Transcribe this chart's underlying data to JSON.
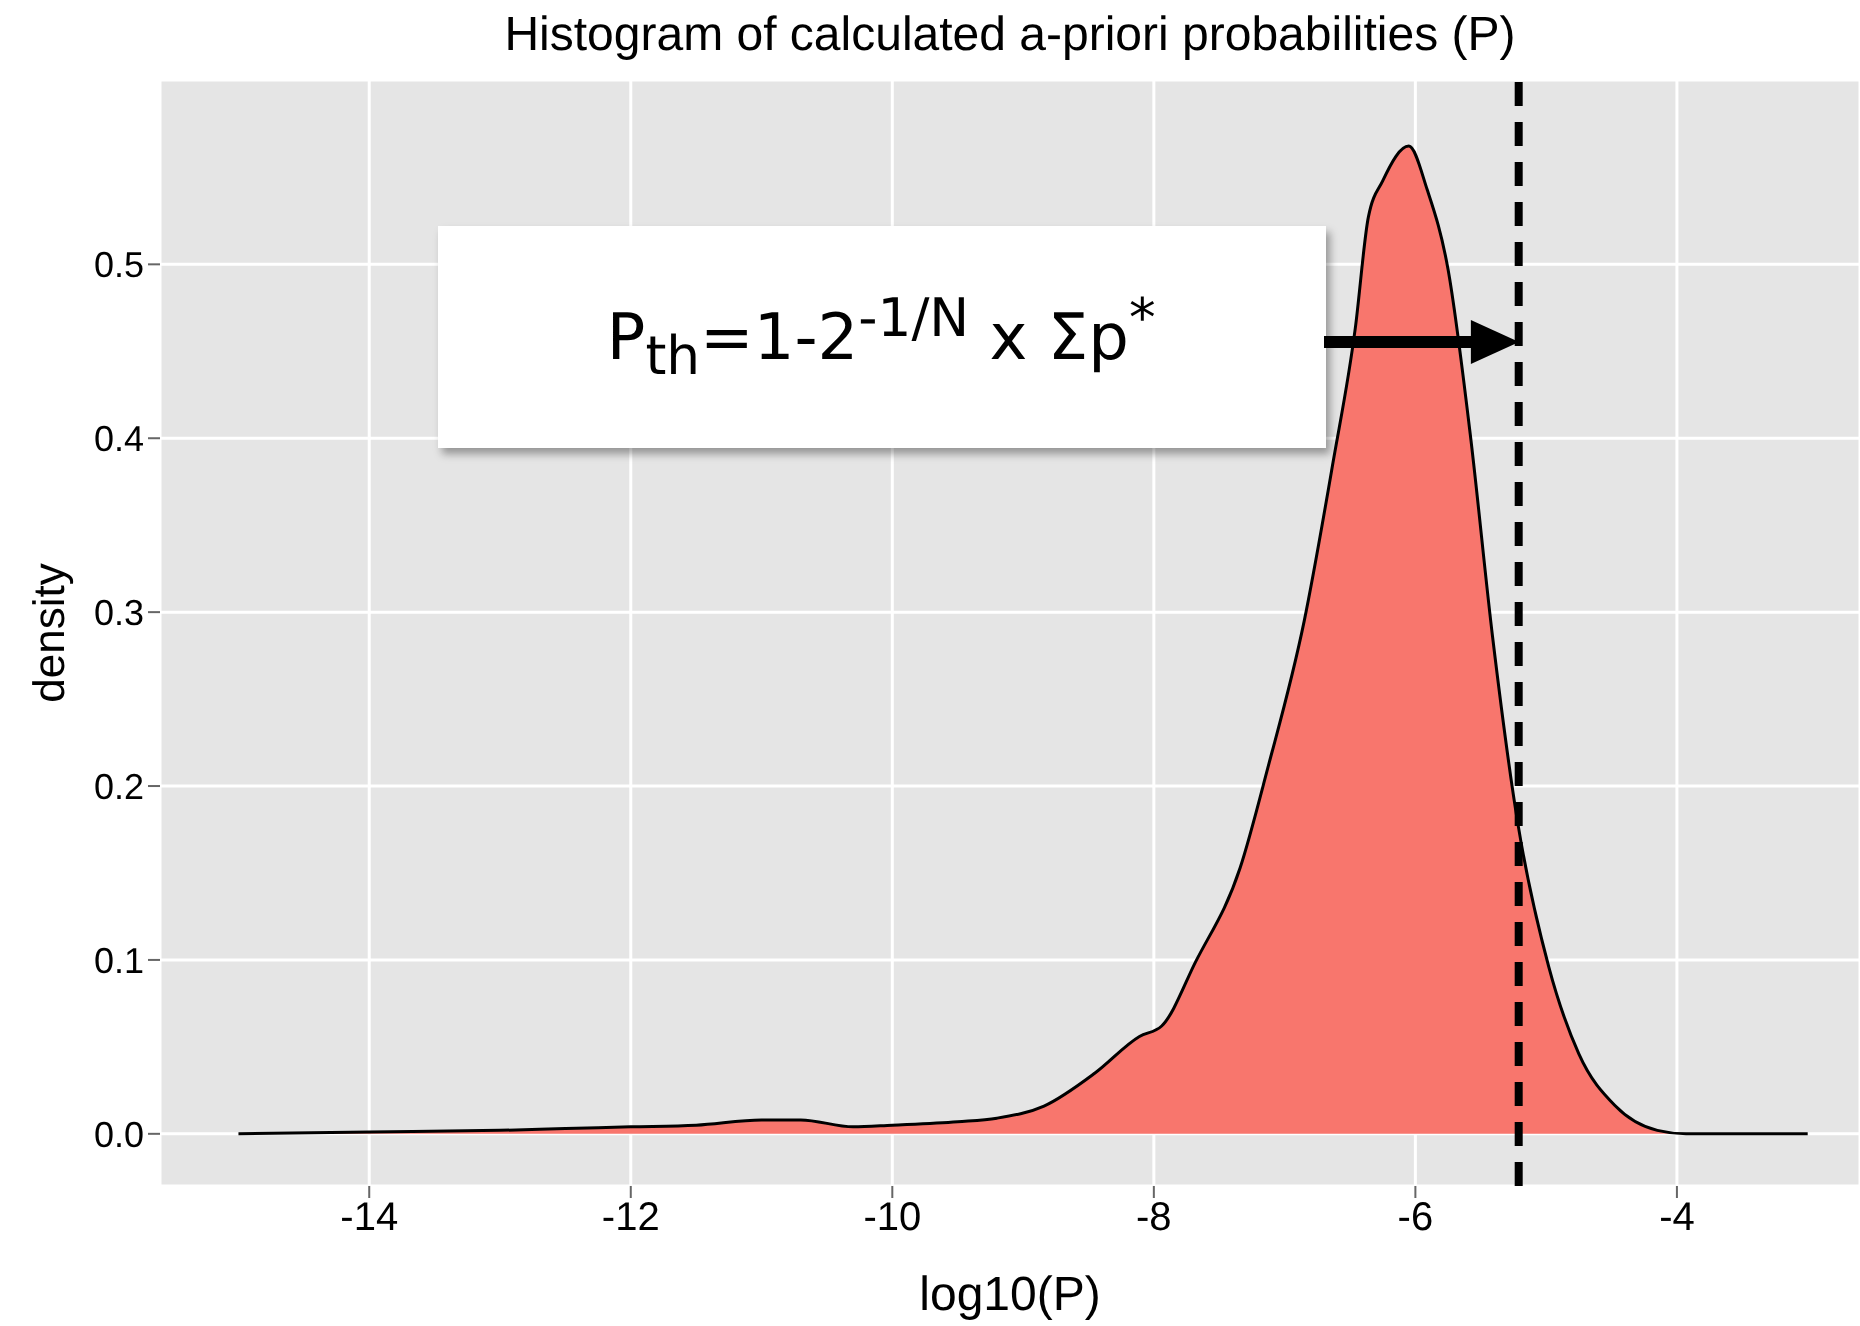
{
  "chart_data": {
    "type": "area",
    "title": "Histogram of calculated a-priori probabilities (P)",
    "xlabel": "log10(P)",
    "ylabel": "density",
    "x": [
      -15,
      -14,
      -13,
      -12.5,
      -12,
      -11.5,
      -11,
      -10.7,
      -10.3,
      -10,
      -9.5,
      -9.2,
      -8.84,
      -8.45,
      -8.11,
      -7.94,
      -7.68,
      -7.34,
      -7.13,
      -6.85,
      -6.63,
      -6.46,
      -6.36,
      -6.25,
      -6.05,
      -5.91,
      -5.75,
      -5.58,
      -5.41,
      -5.22,
      -4.98,
      -4.75,
      -4.47,
      -4.15,
      -3.93,
      -3
    ],
    "series": [
      {
        "color": "#f8766d",
        "values": [
          0,
          0.001,
          0.002,
          0.003,
          0.004,
          0.005,
          0.008,
          0.008,
          0.004,
          0.005,
          0.007,
          0.009,
          0.016,
          0.035,
          0.056,
          0.062,
          0.099,
          0.153,
          0.21,
          0.295,
          0.386,
          0.463,
          0.527,
          0.548,
          0.568,
          0.543,
          0.497,
          0.402,
          0.286,
          0.18,
          0.096,
          0.046,
          0.016,
          0.002,
          0,
          0
        ]
      }
    ],
    "xlim": [
      -15.6,
      -2.6
    ],
    "ylim": [
      -0.03,
      0.606
    ],
    "xticks": [
      -14,
      -12,
      -10,
      -8,
      -6,
      -4
    ],
    "yticks": [
      {
        "value": 0,
        "label": "0.0"
      },
      0.1,
      0.2,
      0.3,
      0.4,
      0.5
    ],
    "grid": true,
    "ref_lines": [
      {
        "axis": "x",
        "value": -5.21,
        "color": "#000000",
        "line_style": "dashed"
      }
    ],
    "annotations": [
      "P$_{th}$=1-2$^{-1/N}$ x Σp$^{*}$"
    ]
  }
}
